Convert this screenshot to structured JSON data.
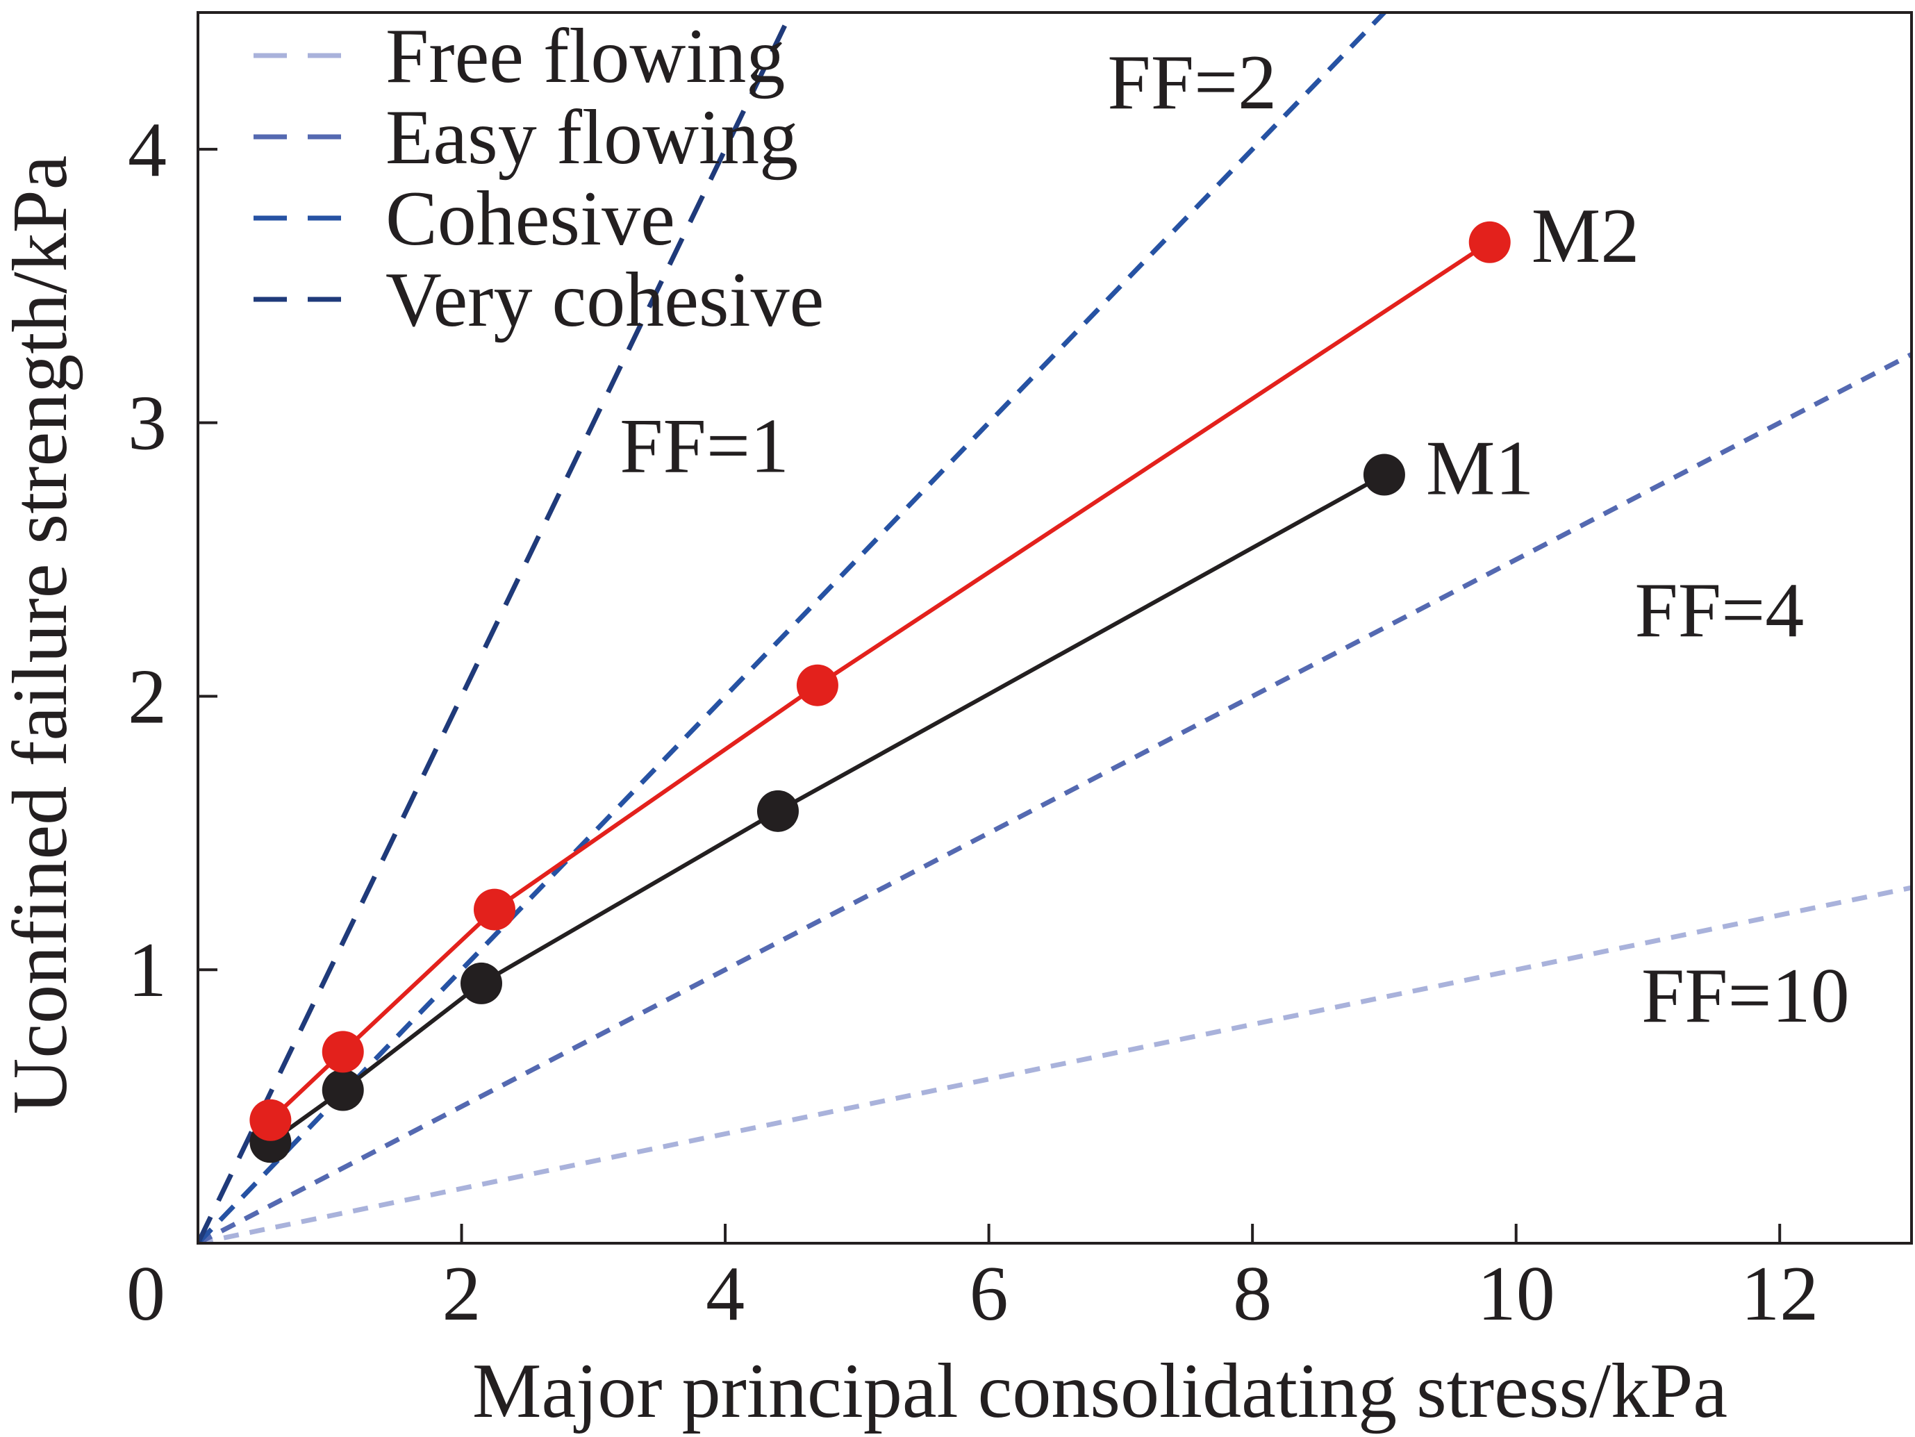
{
  "chart_data": {
    "type": "line",
    "xlabel": "Major principal consolidating stress/kPa",
    "ylabel": "Uconfined failure strength/kPa",
    "xlim": [
      0,
      13
    ],
    "ylim": [
      0,
      4.5
    ],
    "xticks": [
      0,
      2,
      4,
      6,
      8,
      10,
      12
    ],
    "yticks": [
      1,
      2,
      3,
      4
    ],
    "series": [
      {
        "name": "M1",
        "color": "#231f20",
        "x": [
          0.55,
          1.1,
          2.15,
          4.4,
          9.0
        ],
        "y": [
          0.37,
          0.56,
          0.95,
          1.58,
          2.81
        ]
      },
      {
        "name": "M2",
        "color": "#e3211c",
        "x": [
          0.55,
          1.1,
          2.25,
          4.7,
          9.8
        ],
        "y": [
          0.45,
          0.7,
          1.22,
          2.04,
          3.66
        ]
      }
    ],
    "reference_lines": [
      {
        "ff": 10,
        "slope": 0.1,
        "label": "FF=10",
        "color": "#a9b2db"
      },
      {
        "ff": 4,
        "slope": 0.25,
        "label": "FF=4",
        "color": "#5469b1"
      },
      {
        "ff": 2,
        "slope": 0.5,
        "label": "FF=2",
        "color": "#2652a3"
      },
      {
        "ff": 1,
        "slope": 1.0,
        "label": "FF=1",
        "color": "#1f3a7a"
      }
    ],
    "legend": {
      "position": "top-left",
      "items": [
        {
          "label": "Free flowing",
          "color": "#a9b2db"
        },
        {
          "label": "Easy flowing",
          "color": "#5469b1"
        },
        {
          "label": "Cohesive",
          "color": "#2652a3"
        },
        {
          "label": "Very cohesive",
          "color": "#1f3a7a"
        }
      ]
    }
  }
}
